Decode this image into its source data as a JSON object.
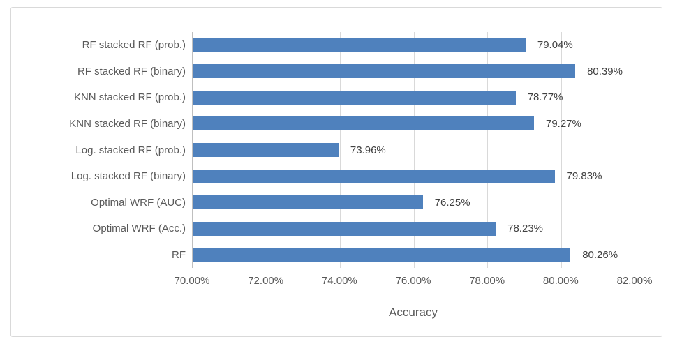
{
  "chart_data": {
    "type": "bar",
    "orientation": "horizontal",
    "title": "",
    "xlabel": "Accuracy",
    "ylabel": "",
    "categories": [
      "RF stacked RF (prob.)",
      "RF stacked RF (binary)",
      "KNN stacked RF (prob.)",
      "KNN stacked RF (binary)",
      "Log. stacked RF (prob.)",
      "Log. stacked RF (binary)",
      "Optimal WRF (AUC)",
      "Optimal WRF (Acc.)",
      "RF"
    ],
    "values": [
      79.04,
      80.39,
      78.77,
      79.27,
      73.96,
      79.83,
      76.25,
      78.23,
      80.26
    ],
    "value_labels": [
      "79.04%",
      "80.39%",
      "78.77%",
      "79.27%",
      "73.96%",
      "79.83%",
      "76.25%",
      "78.23%",
      "80.26%"
    ],
    "xlim": [
      70,
      82
    ],
    "x_tick_values": [
      70,
      72,
      74,
      76,
      78,
      80,
      82
    ],
    "x_tick_labels": [
      "70.00%",
      "72.00%",
      "74.00%",
      "76.00%",
      "78.00%",
      "80.00%",
      "82.00%"
    ],
    "grid": "vertical-only",
    "legend": "none",
    "colors": {
      "bar": "#4f81bd",
      "gridline": "#d9d9d9",
      "axis_line": "#bfbfbf",
      "axis_text": "#595959",
      "data_label_text": "#404040",
      "frame_border": "#d9d9d9",
      "background": "#ffffff"
    }
  }
}
